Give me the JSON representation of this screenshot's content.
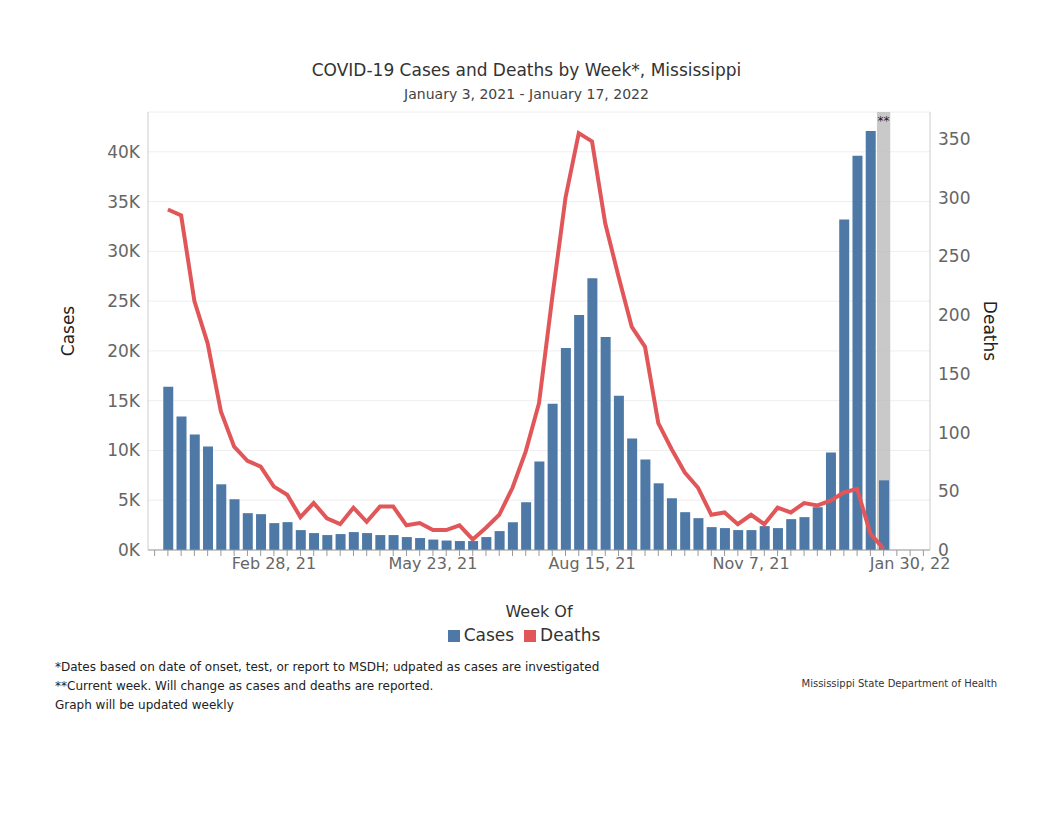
{
  "chart_data": {
    "type": "bar",
    "title": "COVID-19 Cases and Deaths by Week*, Mississippi",
    "subtitle": "January 3, 2021 - January 17, 2022",
    "x_label": "Week Of",
    "y_label": "Cases",
    "y2_label": "Deaths",
    "categories": [
      null,
      null,
      null,
      null,
      null,
      null,
      null,
      null,
      null,
      "Feb 28, 21",
      null,
      null,
      null,
      null,
      null,
      null,
      null,
      null,
      null,
      null,
      null,
      "May 23, 21",
      null,
      null,
      null,
      null,
      null,
      null,
      null,
      null,
      null,
      null,
      null,
      "Aug 15, 21",
      null,
      null,
      null,
      null,
      null,
      null,
      null,
      null,
      null,
      null,
      null,
      "Nov 7, 21",
      null,
      null,
      null,
      null,
      null,
      null,
      null,
      null,
      null,
      null,
      null,
      "Jan 30, 22",
      null
    ],
    "series": [
      {
        "name": "Cases",
        "type": "bar",
        "color": "#4e79a7",
        "values": [
          null,
          16400,
          13400,
          11600,
          10400,
          6600,
          5100,
          3700,
          3600,
          2700,
          2800,
          2000,
          1700,
          1500,
          1600,
          1800,
          1700,
          1500,
          1500,
          1300,
          1200,
          1050,
          950,
          900,
          900,
          1300,
          1900,
          2800,
          4800,
          8900,
          14700,
          20300,
          23600,
          27300,
          21400,
          15500,
          11200,
          9100,
          6700,
          5200,
          3800,
          3200,
          2300,
          2200,
          2000,
          2000,
          2400,
          2200,
          3100,
          3300,
          4300,
          9800,
          33200,
          39600,
          42100,
          7000,
          null,
          null,
          null
        ]
      },
      {
        "name": "Deaths",
        "type": "line",
        "color": "#e15759",
        "axis": "y2",
        "values": [
          null,
          290,
          285,
          212,
          176,
          118,
          88,
          76,
          71,
          54,
          47,
          28,
          40,
          27,
          22,
          36,
          24,
          37,
          37,
          21,
          23,
          17,
          17,
          21,
          9,
          19,
          30,
          53,
          84,
          125,
          215,
          300,
          355,
          348,
          278,
          233,
          190,
          173,
          108,
          86,
          66,
          53,
          30,
          32,
          22,
          30,
          22,
          36,
          32,
          40,
          38,
          42,
          49,
          52,
          14,
          1,
          null,
          null,
          null
        ]
      }
    ],
    "ylim": [
      0,
      44000
    ],
    "yticks": [
      {
        "value": 0,
        "label": "0K"
      },
      {
        "value": 5000,
        "label": "5K"
      },
      {
        "value": 10000,
        "label": "10K"
      },
      {
        "value": 15000,
        "label": "15K"
      },
      {
        "value": 20000,
        "label": "20K"
      },
      {
        "value": 25000,
        "label": "25K"
      },
      {
        "value": 30000,
        "label": "30K"
      },
      {
        "value": 35000,
        "label": "35K"
      },
      {
        "value": 40000,
        "label": "40K"
      }
    ],
    "y2lim": [
      0,
      373
    ],
    "y2ticks": [
      0,
      50,
      100,
      150,
      200,
      250,
      300,
      350
    ],
    "grid": true,
    "legend": "bottom",
    "annotations": [
      "**"
    ],
    "notes": [
      "*Dates based on date of onset, test, or report to MSDH; udpated as cases are investigated",
      "**Current week. Will change as cases and deaths are reported.",
      "Graph will be updated weekly"
    ],
    "source": "Mississippi State Department of Health"
  }
}
